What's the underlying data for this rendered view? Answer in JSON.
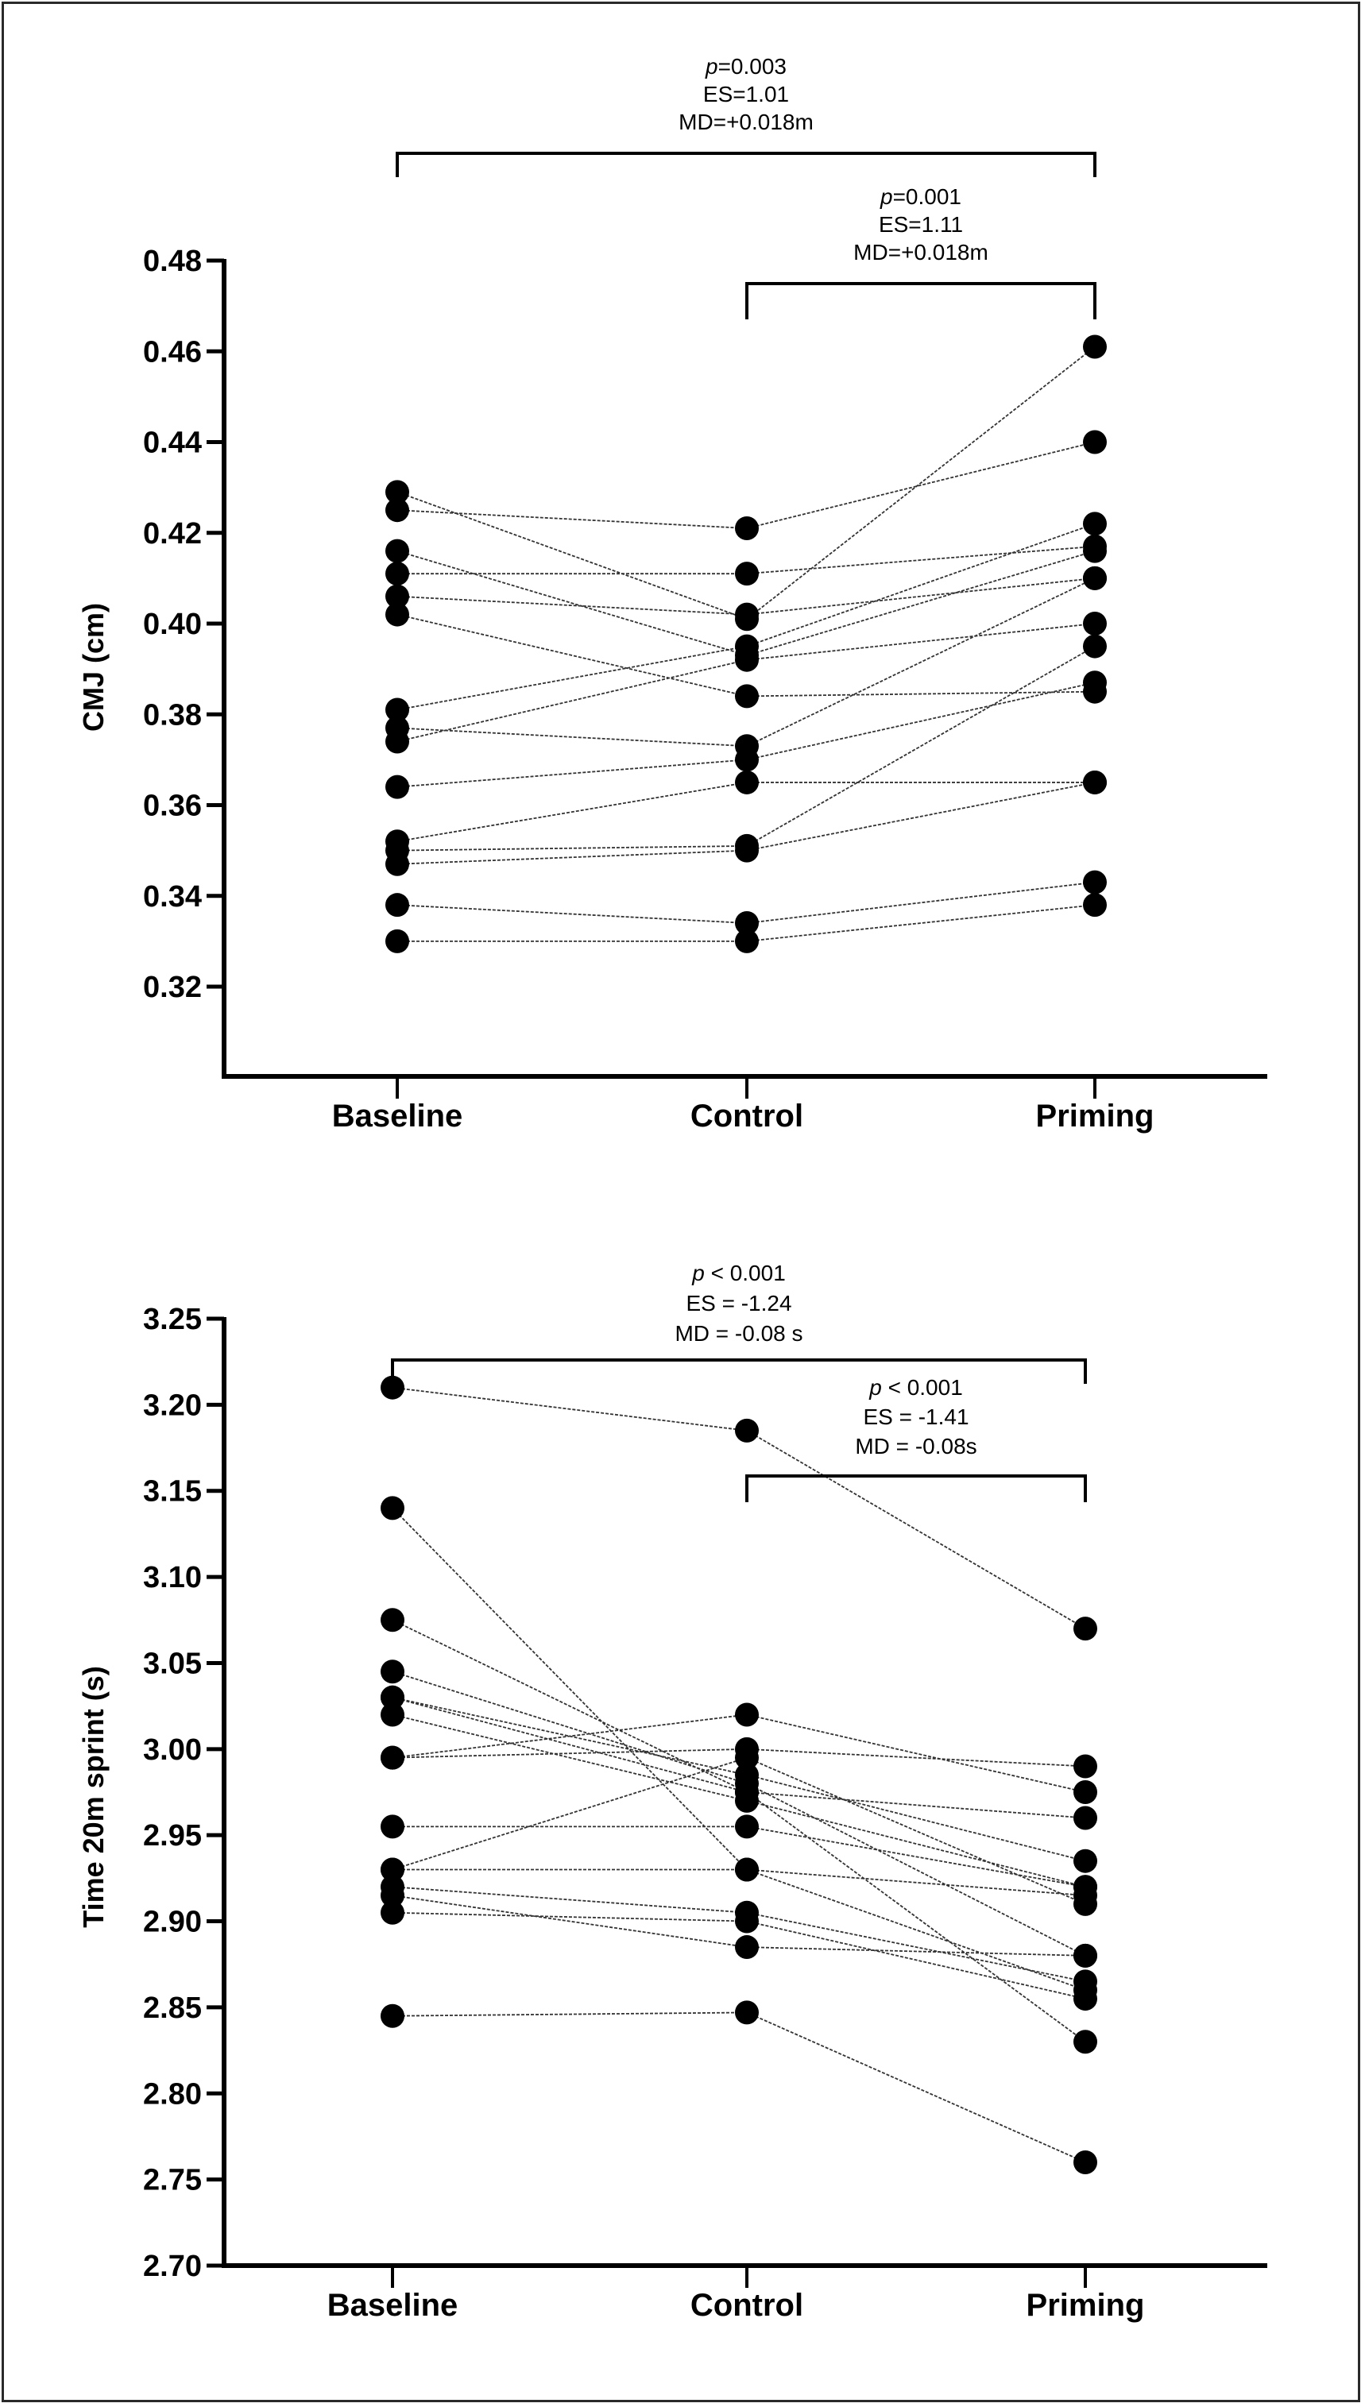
{
  "chart_data": [
    {
      "type": "scatter",
      "subtype": "paired-dot-plot",
      "title": "",
      "xlabel": "",
      "ylabel": "CMJ (cm)",
      "categories": [
        "Baseline",
        "Control",
        "Priming"
      ],
      "ylim": [
        0.3,
        0.48
      ],
      "yticks": [
        0.32,
        0.34,
        0.36,
        0.38,
        0.4,
        0.42,
        0.44,
        0.46,
        0.48
      ],
      "ytick_labels": [
        "0.32",
        "0.34",
        "0.36",
        "0.38",
        "0.40",
        "0.42",
        "0.44",
        "0.46",
        "0.48"
      ],
      "grid": false,
      "subjects": [
        {
          "values": [
            0.429,
            0.401,
            0.461
          ]
        },
        {
          "values": [
            0.425,
            0.421,
            0.44
          ]
        },
        {
          "values": [
            0.416,
            0.393,
            0.416
          ]
        },
        {
          "values": [
            0.411,
            0.411,
            0.417
          ]
        },
        {
          "values": [
            0.406,
            0.402,
            0.41
          ]
        },
        {
          "values": [
            0.402,
            0.384,
            0.385
          ]
        },
        {
          "values": [
            0.381,
            0.395,
            0.422
          ]
        },
        {
          "values": [
            0.377,
            0.373,
            0.41
          ]
        },
        {
          "values": [
            0.374,
            0.392,
            0.4
          ]
        },
        {
          "values": [
            0.364,
            0.37,
            0.387
          ]
        },
        {
          "values": [
            0.352,
            0.365,
            0.365
          ]
        },
        {
          "values": [
            0.35,
            0.351,
            0.395
          ]
        },
        {
          "values": [
            0.347,
            0.35,
            0.365
          ]
        },
        {
          "values": [
            0.338,
            0.334,
            0.343
          ]
        },
        {
          "values": [
            0.33,
            0.33,
            0.338
          ]
        }
      ],
      "annotations": [
        {
          "from": "Baseline",
          "to": "Priming",
          "level": "outer",
          "lines": [
            {
              "italic": "p",
              "text": "=0.003"
            },
            {
              "italic": "",
              "text": "ES=1.01"
            },
            {
              "italic": "",
              "text": "MD=+0.018m"
            }
          ]
        },
        {
          "from": "Control",
          "to": "Priming",
          "level": "inner",
          "lines": [
            {
              "italic": "p",
              "text": "=0.001"
            },
            {
              "italic": "",
              "text": "ES=1.11"
            },
            {
              "italic": "",
              "text": "MD=+0.018m"
            }
          ]
        }
      ]
    },
    {
      "type": "scatter",
      "subtype": "paired-dot-plot",
      "title": "",
      "xlabel": "",
      "ylabel": "Time 20m sprint (s)",
      "categories": [
        "Baseline",
        "Control",
        "Priming"
      ],
      "ylim": [
        2.7,
        3.25
      ],
      "yticks": [
        2.7,
        2.75,
        2.8,
        2.85,
        2.9,
        2.95,
        3.0,
        3.05,
        3.1,
        3.15,
        3.2,
        3.25
      ],
      "ytick_labels": [
        "2.70",
        "2.75",
        "2.80",
        "2.85",
        "2.90",
        "2.95",
        "3.00",
        "3.05",
        "3.10",
        "3.15",
        "3.20",
        "3.25"
      ],
      "grid": false,
      "subjects": [
        {
          "values": [
            3.21,
            3.185,
            3.07
          ]
        },
        {
          "values": [
            3.14,
            2.93,
            2.86
          ]
        },
        {
          "values": [
            3.075,
            2.975,
            2.83
          ]
        },
        {
          "values": [
            3.045,
            2.98,
            2.88
          ]
        },
        {
          "values": [
            3.03,
            2.985,
            2.935
          ]
        },
        {
          "values": [
            3.03,
            2.975,
            2.96
          ]
        },
        {
          "values": [
            3.02,
            2.97,
            2.92
          ]
        },
        {
          "values": [
            2.995,
            3.0,
            2.99
          ]
        },
        {
          "values": [
            2.995,
            3.02,
            2.975
          ]
        },
        {
          "values": [
            2.955,
            2.955,
            2.92
          ]
        },
        {
          "values": [
            2.93,
            2.995,
            2.91
          ]
        },
        {
          "values": [
            2.93,
            2.93,
            2.915
          ]
        },
        {
          "values": [
            2.92,
            2.905,
            2.865
          ]
        },
        {
          "values": [
            2.915,
            2.885,
            2.88
          ]
        },
        {
          "values": [
            2.905,
            2.9,
            2.855
          ]
        },
        {
          "values": [
            2.845,
            2.847,
            2.76
          ]
        }
      ],
      "annotations": [
        {
          "from": "Baseline",
          "to": "Priming",
          "level": "outer",
          "lines": [
            {
              "italic": "p",
              "text": " < 0.001"
            },
            {
              "italic": "",
              "text": "ES = -1.24"
            },
            {
              "italic": "",
              "text": "MD = -0.08 s"
            }
          ]
        },
        {
          "from": "Control",
          "to": "Priming",
          "level": "inner",
          "lines": [
            {
              "italic": "p",
              "text": " < 0.001"
            },
            {
              "italic": "",
              "text": "ES = -1.41"
            },
            {
              "italic": "",
              "text": "MD = -0.08s"
            }
          ]
        }
      ]
    }
  ]
}
